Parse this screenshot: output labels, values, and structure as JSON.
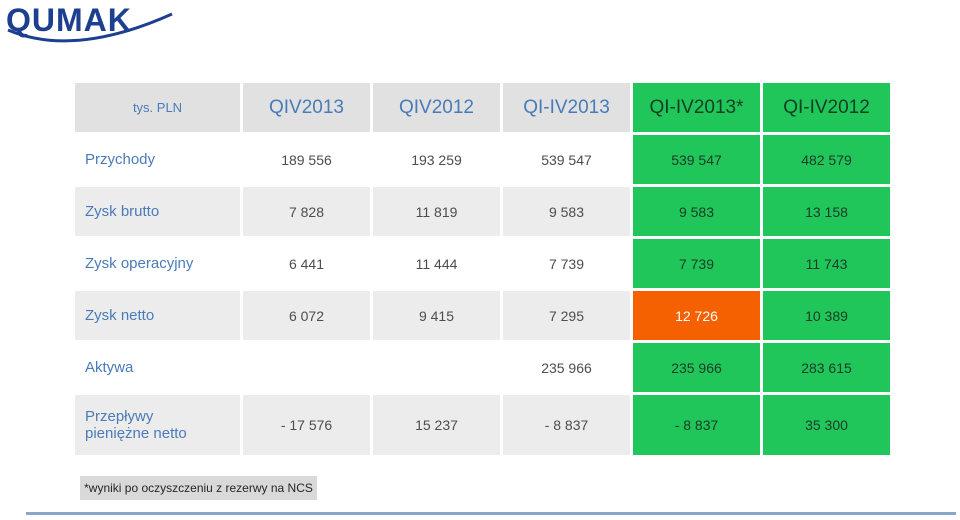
{
  "logo": {
    "text": "QUMAK"
  },
  "table": {
    "unit": "tys. PLN",
    "headers": [
      "QIV2013",
      "QIV2012",
      "QI-IV2013",
      "QI-IV2013*",
      "QI-IV2012"
    ],
    "rows": [
      {
        "label": "Przychody",
        "values": [
          "189 556",
          "193 259",
          "539 547",
          "539 547",
          "482 579"
        ]
      },
      {
        "label": "Zysk brutto",
        "values": [
          "7 828",
          "11 819",
          "9 583",
          "9 583",
          "13 158"
        ]
      },
      {
        "label": "Zysk operacyjny",
        "values": [
          "6 441",
          "11 444",
          "7 739",
          "7 739",
          "11 743"
        ]
      },
      {
        "label": "Zysk netto",
        "values": [
          "6 072",
          "9 415",
          "7 295",
          "12 726",
          "10 389"
        ]
      },
      {
        "label": "Aktywa",
        "values": [
          "",
          "",
          "235 966",
          "235 966",
          "283 615"
        ]
      },
      {
        "label_line1": "Przepływy",
        "label_line2": "pieniężne netto",
        "values": [
          "- 17 576",
          "15 237",
          "- 8 837",
          "- 8 837",
          "35 300"
        ]
      }
    ]
  },
  "footnote": "*wyniki po oczyszczeniu z rezerwy na NCS",
  "colors": {
    "green": "#21c65b",
    "orange": "#f56000",
    "brand": "#1d3f8f",
    "label_blue": "#4a7bb9"
  }
}
